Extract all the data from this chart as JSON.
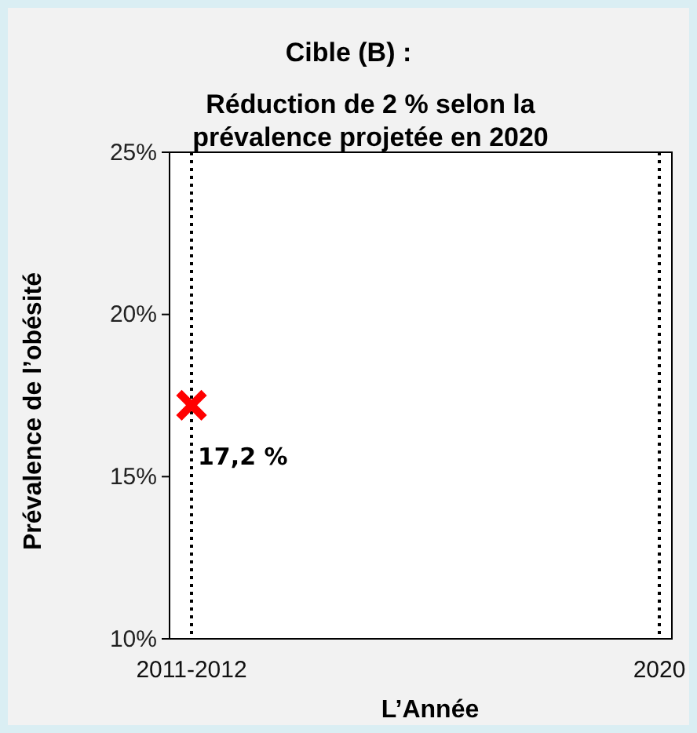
{
  "chart_data": {
    "type": "scatter",
    "title": "Cible (B) :",
    "subtitle": "Réduction de 2 % selon la prévalence projetée en 2020",
    "xlabel": "L’Année",
    "ylabel": "Prévalence de l’obésité",
    "categories": [
      "2011-2012",
      "2020"
    ],
    "series": [
      {
        "color": "#ff0000",
        "values": [
          17.2,
          null
        ],
        "value_labels": [
          "17,2 %",
          null
        ]
      }
    ],
    "marker": "cross",
    "ylim": [
      10,
      25
    ],
    "yticks": [
      {
        "value": 10,
        "label": "10%"
      },
      {
        "value": 15,
        "label": "15%"
      },
      {
        "value": 20,
        "label": "20%"
      },
      {
        "value": 25,
        "label": "25%"
      }
    ],
    "ref_lines": [
      {
        "axis": "x",
        "value": "2011-2012",
        "line_style": "dotted",
        "color": "#000000"
      },
      {
        "axis": "x",
        "value": "2020",
        "line_style": "dotted",
        "color": "#000000"
      }
    ]
  }
}
